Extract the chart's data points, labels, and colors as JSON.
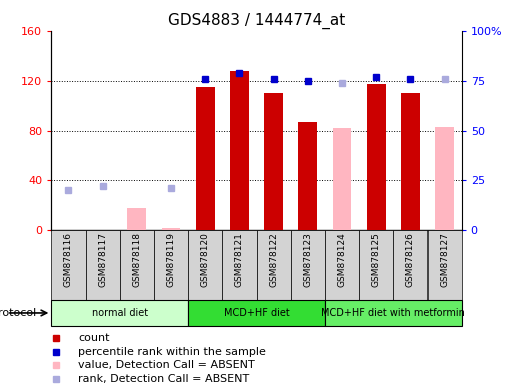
{
  "title": "GDS4883 / 1444774_at",
  "samples": [
    "GSM878116",
    "GSM878117",
    "GSM878118",
    "GSM878119",
    "GSM878120",
    "GSM878121",
    "GSM878122",
    "GSM878123",
    "GSM878124",
    "GSM878125",
    "GSM878126",
    "GSM878127"
  ],
  "count_values": [
    null,
    null,
    null,
    null,
    115,
    128,
    110,
    87,
    null,
    117,
    110,
    null
  ],
  "count_absent_values": [
    null,
    null,
    18,
    2,
    null,
    null,
    null,
    null,
    82,
    null,
    null,
    83
  ],
  "rank_values": [
    null,
    null,
    null,
    null,
    76,
    79,
    76,
    75,
    null,
    77,
    76,
    null
  ],
  "rank_absent_values": [
    20,
    22,
    null,
    21,
    null,
    null,
    null,
    null,
    74,
    null,
    null,
    76
  ],
  "ylim_left": [
    0,
    160
  ],
  "ylim_right": [
    0,
    100
  ],
  "left_ticks": [
    0,
    40,
    80,
    120,
    160
  ],
  "right_ticks": [
    0,
    25,
    50,
    75,
    100
  ],
  "left_tick_labels": [
    "0",
    "40",
    "80",
    "120",
    "160"
  ],
  "right_tick_labels": [
    "0",
    "25",
    "50",
    "75",
    "100%"
  ],
  "groups": [
    {
      "label": "normal diet",
      "start": 0,
      "end": 3,
      "color": "#ccffcc"
    },
    {
      "label": "MCD+HF diet",
      "start": 4,
      "end": 7,
      "color": "#33dd33"
    },
    {
      "label": "MCD+HF diet with metformin",
      "start": 8,
      "end": 11,
      "color": "#66ee66"
    }
  ],
  "bar_width": 0.55,
  "count_color": "#cc0000",
  "count_absent_color": "#ffb6c1",
  "rank_color": "#0000cc",
  "rank_absent_color": "#aaaadd",
  "legend_items": [
    {
      "label": "count",
      "color": "#cc0000"
    },
    {
      "label": "percentile rank within the sample",
      "color": "#0000cc"
    },
    {
      "label": "value, Detection Call = ABSENT",
      "color": "#ffb6c1"
    },
    {
      "label": "rank, Detection Call = ABSENT",
      "color": "#aaaadd"
    }
  ],
  "protocol_label": "protocol",
  "title_fontsize": 11
}
